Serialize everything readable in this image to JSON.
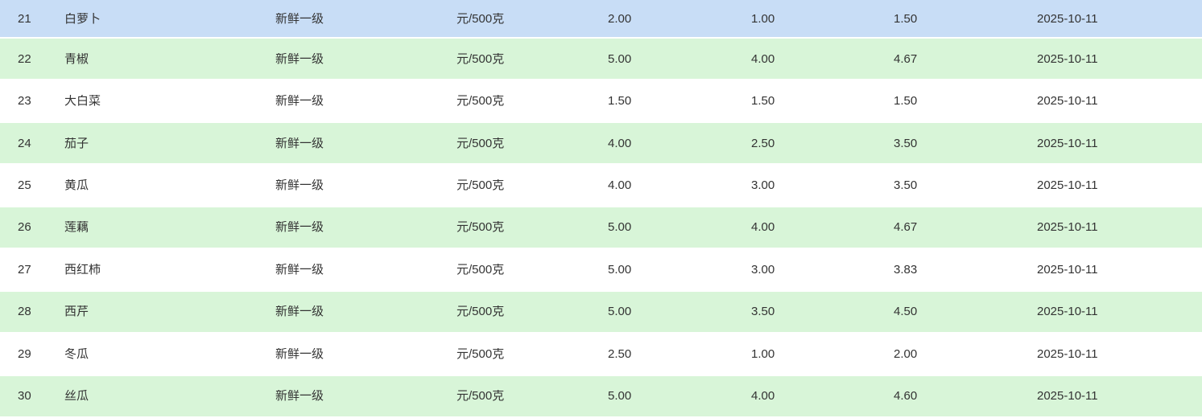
{
  "colors": {
    "highlight_blue": "#c8ddf6",
    "stripe_green": "#d8f5d8",
    "stripe_white": "#ffffff",
    "text": "#333333"
  },
  "table": {
    "rows": [
      {
        "seq": "21",
        "name": "白萝卜",
        "grade": "新鲜一级",
        "unit": "元/500克",
        "price_high": "2.00",
        "price_low": "1.00",
        "price_avg": "1.50",
        "date": "2025-10-11",
        "state": "highlighted"
      },
      {
        "seq": "22",
        "name": "青椒",
        "grade": "新鲜一级",
        "unit": "元/500克",
        "price_high": "5.00",
        "price_low": "4.00",
        "price_avg": "4.67",
        "date": "2025-10-11",
        "state": "stripe-green"
      },
      {
        "seq": "23",
        "name": "大白菜",
        "grade": "新鲜一级",
        "unit": "元/500克",
        "price_high": "1.50",
        "price_low": "1.50",
        "price_avg": "1.50",
        "date": "2025-10-11",
        "state": "stripe-white"
      },
      {
        "seq": "24",
        "name": "茄子",
        "grade": "新鲜一级",
        "unit": "元/500克",
        "price_high": "4.00",
        "price_low": "2.50",
        "price_avg": "3.50",
        "date": "2025-10-11",
        "state": "stripe-green"
      },
      {
        "seq": "25",
        "name": "黄瓜",
        "grade": "新鲜一级",
        "unit": "元/500克",
        "price_high": "4.00",
        "price_low": "3.00",
        "price_avg": "3.50",
        "date": "2025-10-11",
        "state": "stripe-white"
      },
      {
        "seq": "26",
        "name": "莲藕",
        "grade": "新鲜一级",
        "unit": "元/500克",
        "price_high": "5.00",
        "price_low": "4.00",
        "price_avg": "4.67",
        "date": "2025-10-11",
        "state": "stripe-green"
      },
      {
        "seq": "27",
        "name": "西红柿",
        "grade": "新鲜一级",
        "unit": "元/500克",
        "price_high": "5.00",
        "price_low": "3.00",
        "price_avg": "3.83",
        "date": "2025-10-11",
        "state": "stripe-white"
      },
      {
        "seq": "28",
        "name": "西芹",
        "grade": "新鲜一级",
        "unit": "元/500克",
        "price_high": "5.00",
        "price_low": "3.50",
        "price_avg": "4.50",
        "date": "2025-10-11",
        "state": "stripe-green"
      },
      {
        "seq": "29",
        "name": "冬瓜",
        "grade": "新鲜一级",
        "unit": "元/500克",
        "price_high": "2.50",
        "price_low": "1.00",
        "price_avg": "2.00",
        "date": "2025-10-11",
        "state": "stripe-white"
      },
      {
        "seq": "30",
        "name": "丝瓜",
        "grade": "新鲜一级",
        "unit": "元/500克",
        "price_high": "5.00",
        "price_low": "4.00",
        "price_avg": "4.60",
        "date": "2025-10-11",
        "state": "stripe-green"
      }
    ]
  }
}
